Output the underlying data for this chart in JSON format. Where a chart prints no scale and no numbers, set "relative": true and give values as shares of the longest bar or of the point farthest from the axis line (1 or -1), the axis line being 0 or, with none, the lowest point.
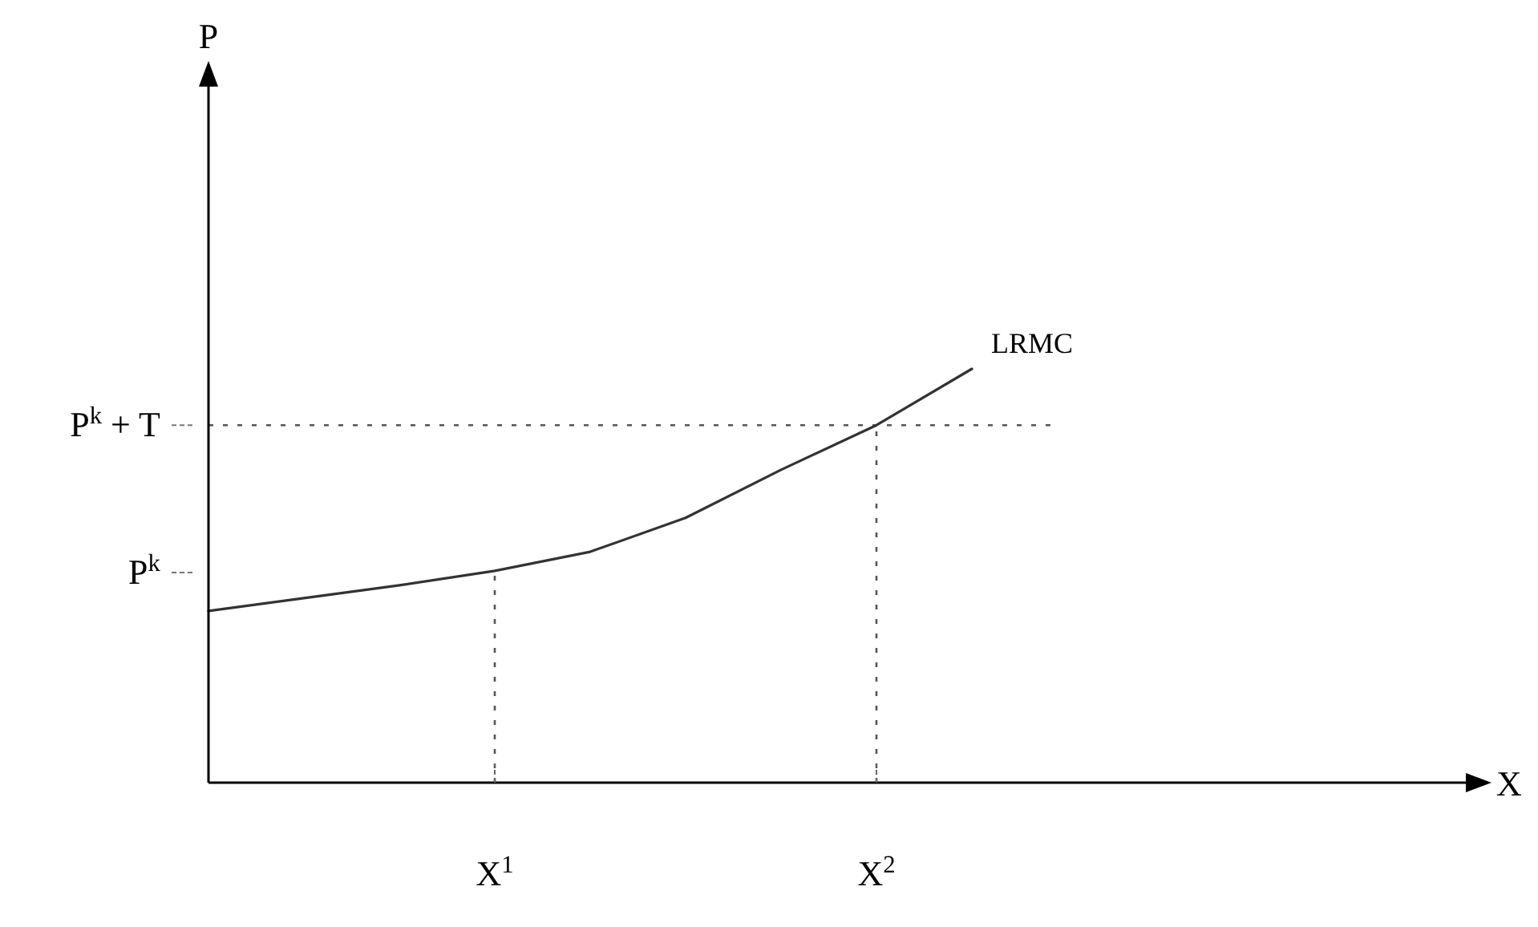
{
  "chart_data": {
    "type": "line",
    "relative": true,
    "categories": [
      null,
      null,
      null,
      "X$^{1}$",
      null,
      null,
      null,
      "X$^{2}$",
      null
    ],
    "series": [
      {
        "name": "LRMC",
        "color": "#333333",
        "values": [
          0.415,
          0.446,
          0.477,
          0.512,
          0.558,
          0.64,
          0.756,
          0.864,
          1
        ]
      }
    ],
    "ref_lines": [
      {
        "axis": "y",
        "value": 0.864,
        "label": "P$^{k}$ + T",
        "line_style": "dotted",
        "color": "#555555"
      },
      {
        "axis": "x",
        "value": "X$^{1}$",
        "line_style": "dotted",
        "color": "#555555"
      },
      {
        "axis": "x",
        "value": "X$^{2}$",
        "line_style": "dotted",
        "color": "#555555"
      }
    ],
    "annotations": [
      "P$^{k}$",
      "P",
      "X"
    ],
    "grid": false,
    "marker": "none",
    "line_style": "solid"
  }
}
